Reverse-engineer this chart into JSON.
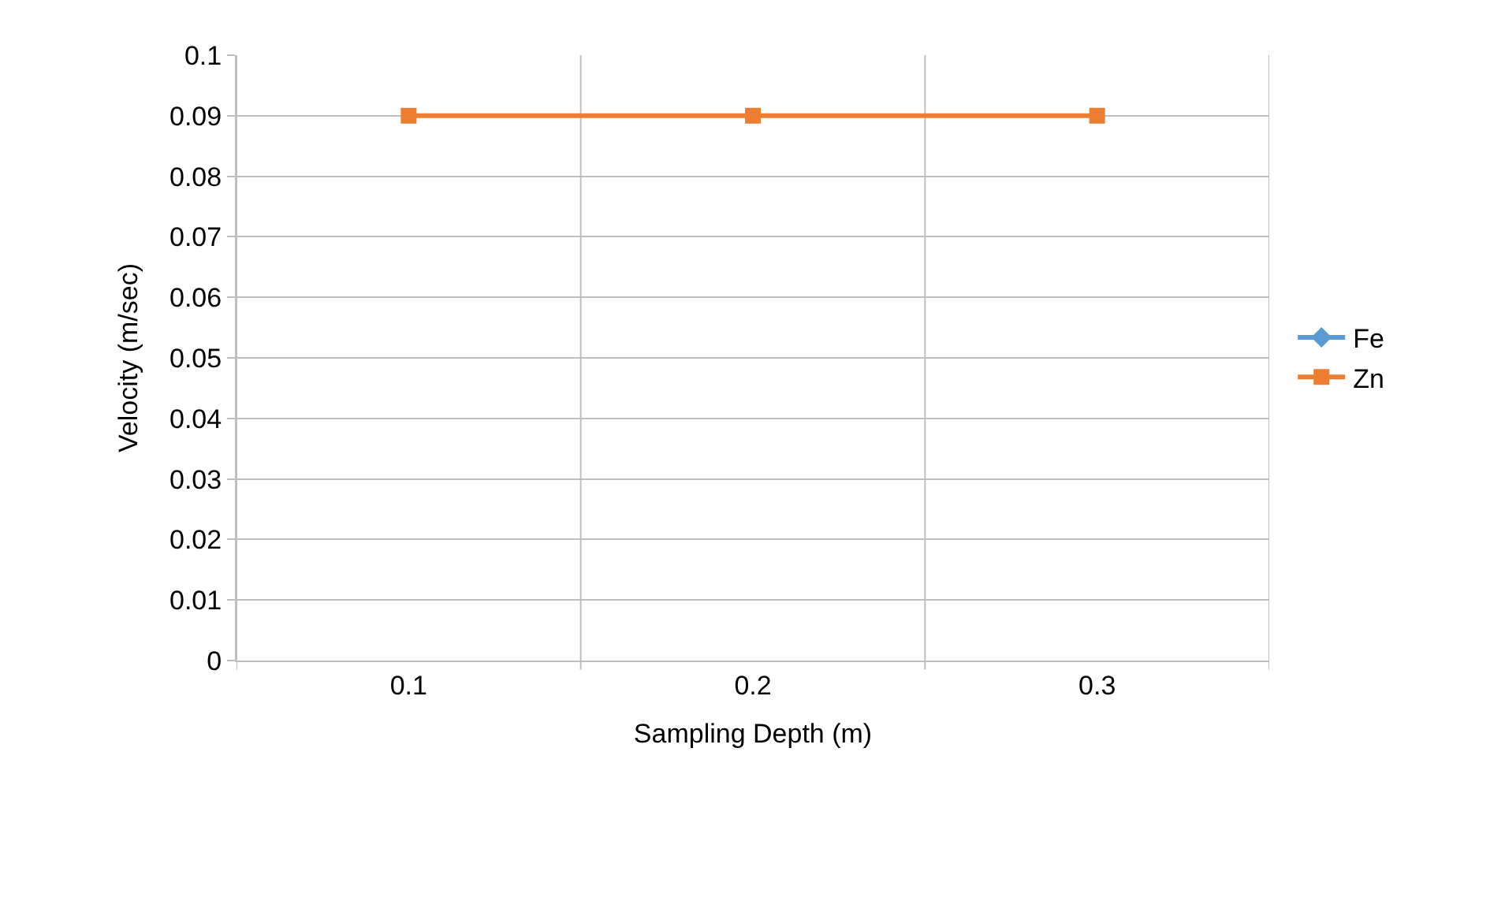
{
  "chart_data": {
    "type": "line",
    "xlabel": "Sampling Depth (m)",
    "ylabel": "Velocity (m/sec)",
    "categories": [
      "0.1",
      "0.2",
      "0.3"
    ],
    "series": [
      {
        "name": "Fe",
        "color": "#5b9bd5",
        "marker": "diamond",
        "values": [
          null,
          null,
          null
        ]
      },
      {
        "name": "Zn",
        "color": "#ed7d31",
        "marker": "square",
        "values": [
          0.09,
          0.09,
          0.09
        ]
      }
    ],
    "ylim": [
      0,
      0.1
    ],
    "yticks": [
      0,
      0.01,
      0.02,
      0.03,
      0.04,
      0.05,
      0.06,
      0.07,
      0.08,
      0.09,
      0.1
    ],
    "grid": true,
    "legend": "right",
    "line_style": "solid"
  }
}
